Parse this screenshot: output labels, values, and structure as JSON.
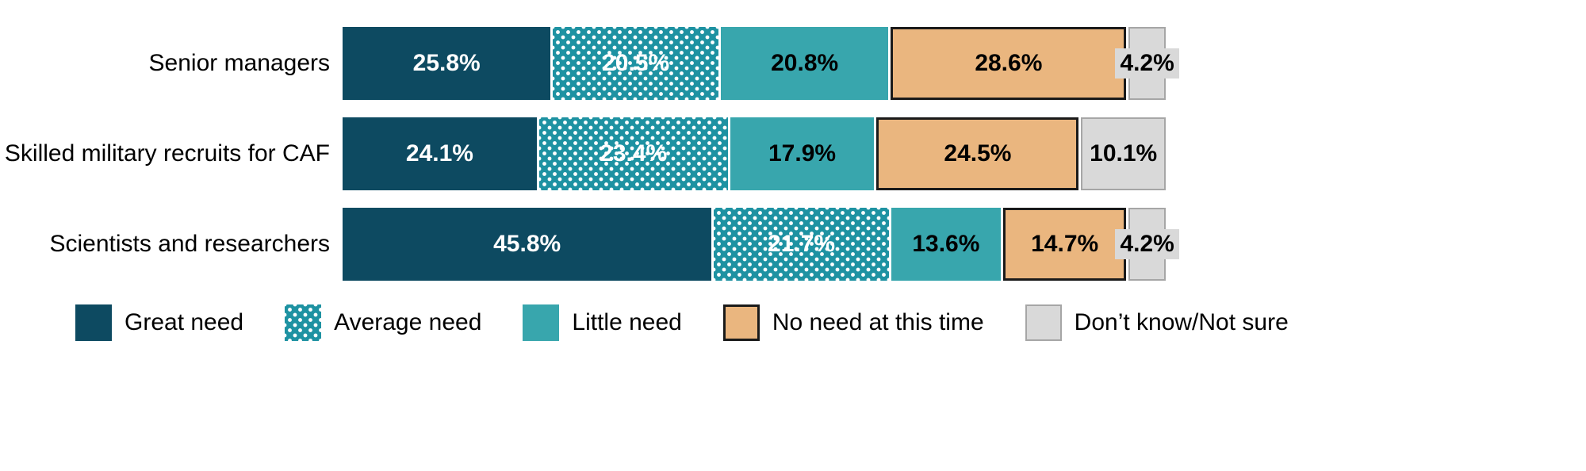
{
  "chart_data": {
    "type": "bar",
    "orientation": "horizontal",
    "stacked": true,
    "title": "",
    "categories": [
      "Senior managers",
      "Skilled military recruits for CAF",
      "Scientists and researchers"
    ],
    "series": [
      {
        "name": "Great need",
        "color": "#0d4a61",
        "text_color": "#ffffff",
        "pattern": "solid",
        "values": [
          25.8,
          24.1,
          45.8
        ]
      },
      {
        "name": "Average need",
        "color": "#1e92a2",
        "text_color": "#ffffff",
        "pattern": "dots",
        "values": [
          20.5,
          23.4,
          21.7
        ]
      },
      {
        "name": "Little need",
        "color": "#38a6ad",
        "text_color": "#000000",
        "pattern": "solid",
        "values": [
          20.8,
          17.9,
          13.6
        ]
      },
      {
        "name": "No need at this time",
        "color": "#eab67f",
        "text_color": "#000000",
        "pattern": "solid",
        "border": "#1a1a1a",
        "border_width": 3,
        "values": [
          28.6,
          24.5,
          14.7
        ]
      },
      {
        "name": "Don’t know/Not sure",
        "color": "#d9d9d9",
        "text_color": "#000000",
        "pattern": "solid",
        "border": "#a6a6a6",
        "border_width": 2,
        "values": [
          4.2,
          10.1,
          4.2
        ]
      }
    ],
    "value_labels": [
      [
        "25.8%",
        "20.5%",
        "20.8%",
        "28.6%",
        "4.2%"
      ],
      [
        "24.1%",
        "23.4%",
        "17.9%",
        "24.5%",
        "10.1%"
      ],
      [
        "45.8%",
        "21.7%",
        "13.6%",
        "14.7%",
        "4.2%"
      ]
    ],
    "xlim": [
      0,
      100
    ],
    "grid": false,
    "legend_position": "bottom",
    "legend": [
      "Great need",
      "Average need",
      "Little need",
      "No need at this time",
      "Don’t know/Not sure"
    ]
  }
}
